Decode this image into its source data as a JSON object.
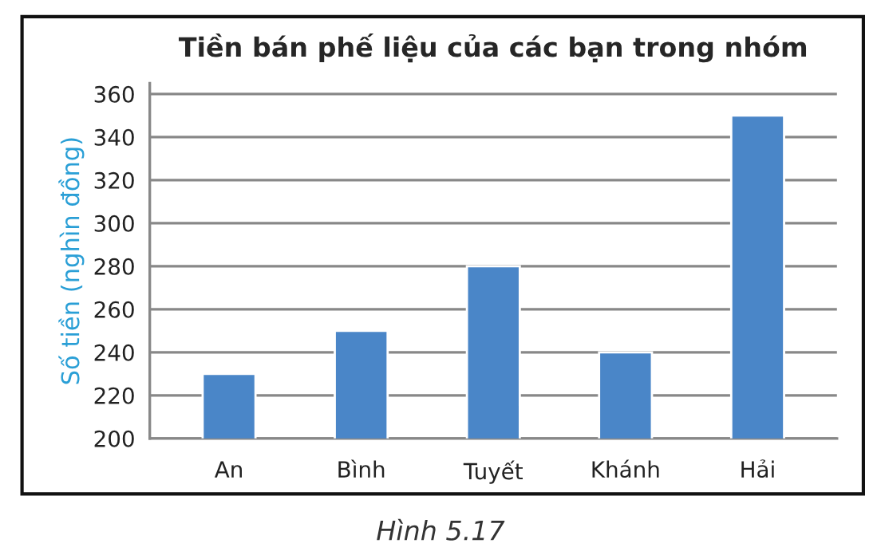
{
  "chart_data": {
    "type": "bar",
    "title": "Tiền bán phế liệu của các bạn trong nhóm",
    "ylabel": "Số tiền (nghìn đồng)",
    "categories": [
      "An",
      "Bình",
      "Tuyết",
      "Khánh",
      "Hải"
    ],
    "values": [
      230,
      250,
      280,
      240,
      350
    ],
    "color": "#4a86c8",
    "ylim": [
      200,
      365
    ],
    "yticks": [
      200,
      220,
      240,
      260,
      280,
      300,
      320,
      340,
      360
    ],
    "grid": "y",
    "legend": false,
    "annotations": [
      "Hình 5.17"
    ]
  }
}
